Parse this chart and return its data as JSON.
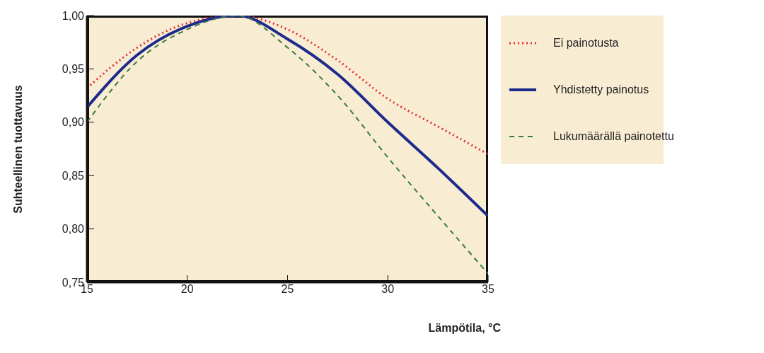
{
  "chart_data": {
    "type": "line",
    "xlabel": "Lämpötila, °C",
    "ylabel": "Suhteellinen tuottavuus",
    "x": [
      15,
      17.5,
      20,
      22.5,
      25,
      27.5,
      30,
      32.5,
      35
    ],
    "series": [
      {
        "name": "Ei painotusta",
        "color": "#e8312f",
        "line_style": "dotted",
        "values": [
          0.932,
          0.97,
          0.993,
          1.0,
          0.987,
          0.958,
          0.922,
          0.896,
          0.87
        ]
      },
      {
        "name": "Yhdistetty painotus",
        "color": "#1c2a8c",
        "line_style": "solid",
        "values": [
          0.914,
          0.963,
          0.99,
          1.0,
          0.978,
          0.945,
          0.9,
          0.857,
          0.812
        ]
      },
      {
        "name": "Lukumäärällä painotettu",
        "color": "#3a7a3a",
        "line_style": "dashed",
        "values": [
          0.9,
          0.957,
          0.987,
          1.0,
          0.97,
          0.925,
          0.867,
          0.812,
          0.758
        ]
      }
    ],
    "xlim": [
      15,
      35
    ],
    "xticks": [
      15,
      20,
      25,
      30,
      35
    ],
    "ylim": [
      0.75,
      1.0
    ],
    "yticks": [
      {
        "value": 0.75,
        "label": "0,75"
      },
      {
        "value": 0.8,
        "label": "0,80"
      },
      {
        "value": 0.85,
        "label": "0,85"
      },
      {
        "value": 0.9,
        "label": "0,90"
      },
      {
        "value": 0.95,
        "label": "0,95"
      },
      {
        "value": 1.0,
        "label": "1,00"
      }
    ],
    "legend": "right",
    "marker": "none"
  }
}
